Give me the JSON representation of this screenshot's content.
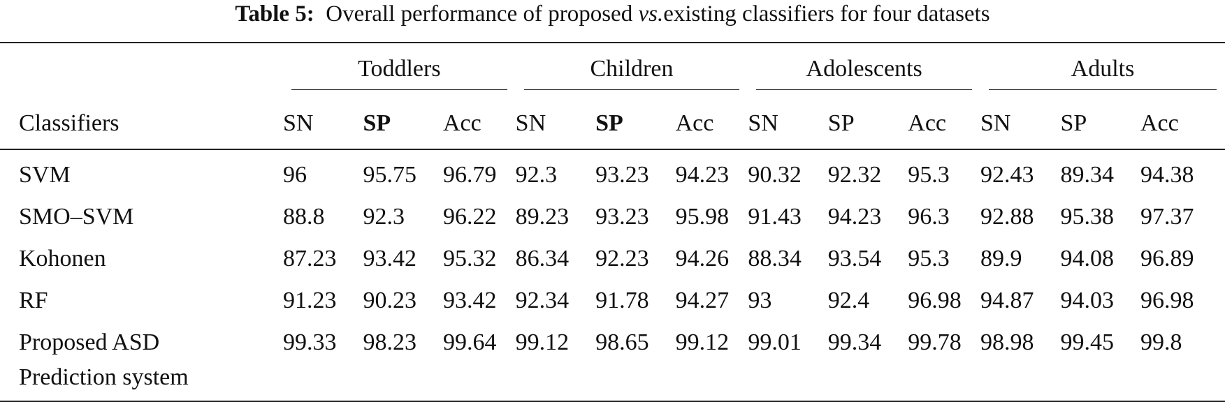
{
  "caption": {
    "label": "Table 5:",
    "text_before": "Overall performance of proposed ",
    "text_italic": "vs.",
    "text_after": "existing classifiers for four datasets"
  },
  "table": {
    "row_header": "Classifiers",
    "groups": [
      "Toddlers",
      "Children",
      "Adolescents",
      "Adults"
    ],
    "metrics": [
      "SN",
      "SP",
      "Acc"
    ],
    "rows": [
      {
        "name": [
          "SVM"
        ],
        "values": [
          "96",
          "95.75",
          "96.79",
          "92.3",
          "93.23",
          "94.23",
          "90.32",
          "92.32",
          "95.3",
          "92.43",
          "89.34",
          "94.38"
        ]
      },
      {
        "name": [
          "SMO–SVM"
        ],
        "values": [
          "88.8",
          "92.3",
          "96.22",
          "89.23",
          "93.23",
          "95.98",
          "91.43",
          "94.23",
          "96.3",
          "92.88",
          "95.38",
          "97.37"
        ]
      },
      {
        "name": [
          "Kohonen"
        ],
        "values": [
          "87.23",
          "93.42",
          "95.32",
          "86.34",
          "92.23",
          "94.26",
          "88.34",
          "93.54",
          "95.3",
          "89.9",
          "94.08",
          "96.89"
        ]
      },
      {
        "name": [
          "RF"
        ],
        "values": [
          "91.23",
          "90.23",
          "93.42",
          "92.34",
          "91.78",
          "94.27",
          "93",
          "92.4",
          "96.98",
          "94.87",
          "94.03",
          "96.98"
        ]
      },
      {
        "name": [
          "Proposed ASD",
          "Prediction system"
        ],
        "values": [
          "99.33",
          "98.23",
          "99.64",
          "99.12",
          "98.65",
          "99.12",
          "99.01",
          "99.34",
          "99.78",
          "98.98",
          "99.45",
          "99.8"
        ]
      }
    ]
  }
}
